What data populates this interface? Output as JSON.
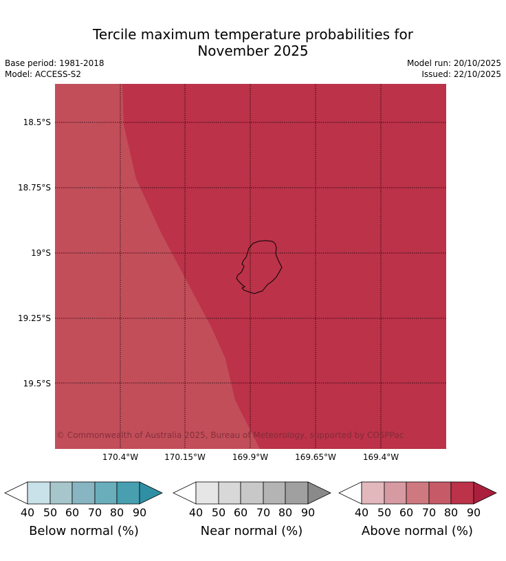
{
  "title_line1": "Tercile maximum temperature probabilities for",
  "title_line2": "November 2025",
  "base_period": "Base period: 1981-2018",
  "model": "Model: ACCESS-S2",
  "model_run": "Model run: 20/10/2025",
  "issued": "Issued: 22/10/2025",
  "copyright": "© Commonwealth of Australia 2025, Bureau of Meteorology, supported by COSPPac",
  "lat_labels": [
    "18.5°S",
    "18.75°S",
    "19°S",
    "19.25°S",
    "19.5°S"
  ],
  "lon_labels": [
    "170.4°W",
    "170.15°W",
    "169.9°W",
    "169.65°W",
    "169.4°W"
  ],
  "colors": {
    "above_70_80": "#c24e5a",
    "above_80_90": "#bb3249",
    "coastline": "#000000"
  },
  "legends": {
    "below": {
      "title": "Below normal (%)",
      "ticks": [
        "40",
        "50",
        "60",
        "70",
        "80",
        "90"
      ],
      "colors": [
        "#c9e1e8",
        "#a6c6cc",
        "#87b5c2",
        "#6aaebc",
        "#479fb0",
        "#2f8fa5"
      ]
    },
    "near": {
      "title": "Near normal (%)",
      "ticks": [
        "40",
        "50",
        "60",
        "70",
        "80",
        "90"
      ],
      "colors": [
        "#e6e6e6",
        "#d8d8d8",
        "#c8c8c8",
        "#b4b4b4",
        "#a0a0a0",
        "#8a8a8a"
      ]
    },
    "above": {
      "title": "Above normal (%)",
      "ticks": [
        "40",
        "50",
        "60",
        "70",
        "80",
        "90"
      ],
      "colors": [
        "#e2b8bd",
        "#d69aa2",
        "#ce7880",
        "#c65a67",
        "#bb3249",
        "#ab1f3c"
      ]
    }
  }
}
